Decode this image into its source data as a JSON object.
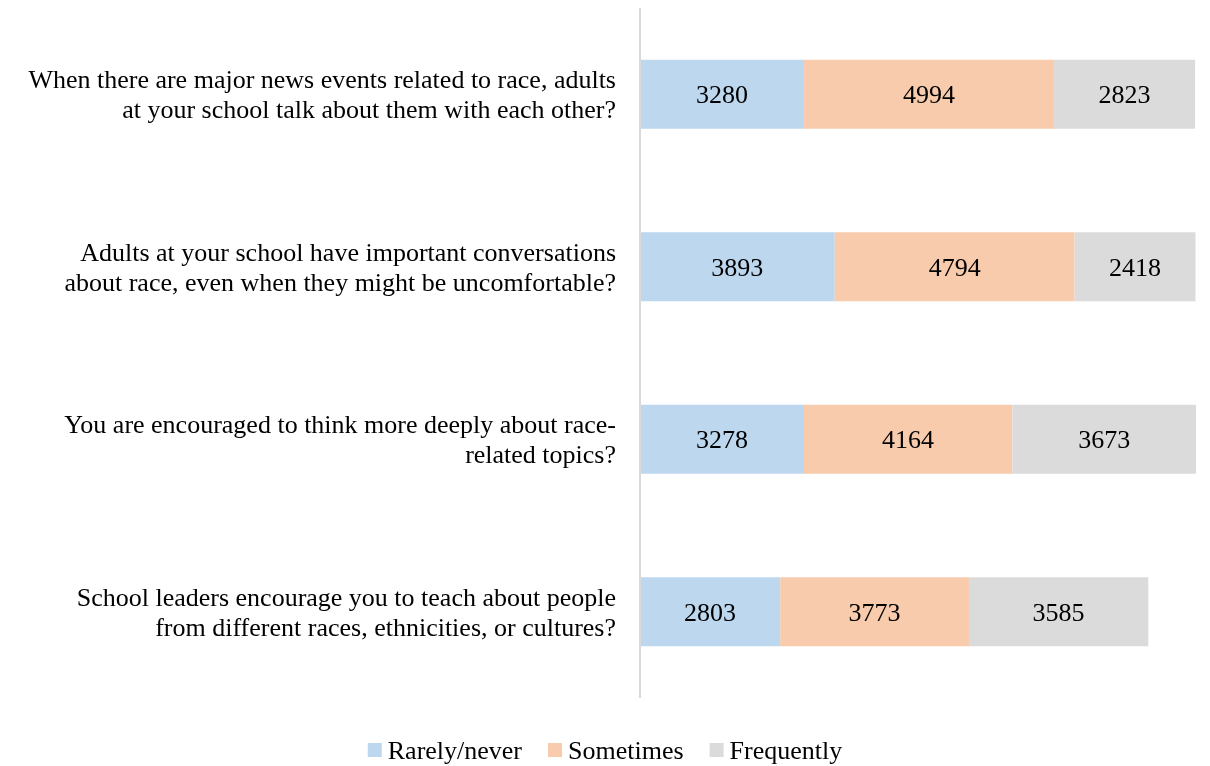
{
  "chart_data": {
    "type": "bar",
    "orientation": "horizontal",
    "stacked": true,
    "data_labels": true,
    "legend": "bottom",
    "categories": [
      "When there are major news events related to race, adults at your school talk about them with each other?",
      "Adults at your school have important conversations about race, even when they might be uncomfortable?",
      "You are encouraged to think more deeply about race-related topics?",
      "School leaders encourage you to teach about people from different races, ethnicities, or cultures?"
    ],
    "series": [
      {
        "name": "Rarely/never",
        "color": "#bdd7ee",
        "values": [
          3280,
          3893,
          3278,
          2803
        ]
      },
      {
        "name": "Sometimes",
        "color": "#f8cbad",
        "values": [
          4994,
          4794,
          4164,
          3773
        ]
      },
      {
        "name": "Frequently",
        "color": "#dbdbdb",
        "values": [
          2823,
          2418,
          3673,
          3585
        ]
      }
    ]
  }
}
